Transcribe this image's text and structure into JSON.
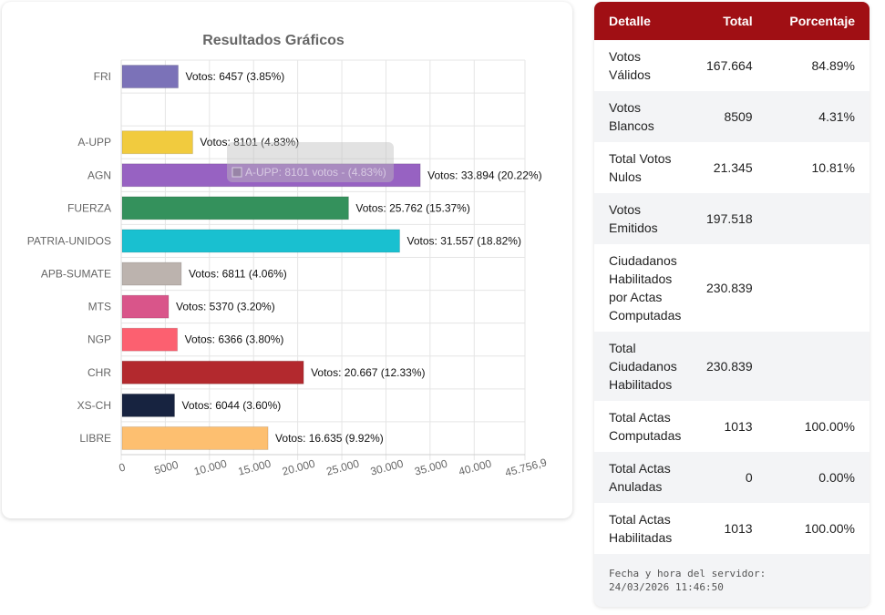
{
  "chart_data": {
    "type": "bar",
    "orientation": "horizontal",
    "title": "Resultados Gráficos",
    "xlabel": "",
    "ylabel": "",
    "xlim": [
      0,
      45756.9
    ],
    "x_ticks": [
      0,
      5000,
      10000,
      15000,
      20000,
      25000,
      30000,
      35000,
      40000,
      45756.9
    ],
    "x_tick_labels": [
      "0",
      "5000",
      "10.000",
      "15.000",
      "20.000",
      "25.000",
      "30.000",
      "35.000",
      "40.000",
      "45.756,9"
    ],
    "grid": true,
    "legend": "none",
    "categories": [
      "FRI",
      "",
      "A-UPP",
      "AGN",
      "FUERZA",
      "PATRIA-UNIDOS",
      "APB-SUMATE",
      "MTS",
      "NGP",
      "CHR",
      "XS-CH",
      "LIBRE"
    ],
    "values": [
      6457,
      null,
      8101,
      33894,
      25762,
      31557,
      6811,
      5370,
      6366,
      20667,
      6044,
      16635
    ],
    "data_labels": [
      "Votos: 6457 (3.85%)",
      "",
      "Votos: 8101 (4.83%)",
      "Votos: 33.894 (20.22%)",
      "Votos: 25.762 (15.37%)",
      "Votos: 31.557 (18.82%)",
      "Votos: 6811 (4.06%)",
      "Votos: 5370 (3.20%)",
      "Votos: 6366 (3.80%)",
      "Votos: 20.667 (12.33%)",
      "Votos: 6044 (3.60%)",
      "Votos: 16.635 (9.92%)"
    ],
    "colors": [
      "#7b72b8",
      "#ffffff",
      "#f1cb3e",
      "#9762c2",
      "#34915c",
      "#19c0d0",
      "#bcb3ae",
      "#d9558a",
      "#fc6070",
      "#b3292e",
      "#172340",
      "#fdbf70"
    ],
    "tooltip": {
      "text": "A-UPP: 8101 votos - (4.83%)",
      "color": "#f1cb3e"
    }
  },
  "table": {
    "headers": [
      "Detalle",
      "Total",
      "Porcentaje"
    ],
    "rows": [
      {
        "detalle": [
          "Votos",
          "Válidos"
        ],
        "total": "167.664",
        "porcentaje": "84.89%"
      },
      {
        "detalle": [
          "Votos",
          "Blancos"
        ],
        "total": "8509",
        "porcentaje": "4.31%"
      },
      {
        "detalle": [
          "Total Votos",
          "Nulos"
        ],
        "total": "21.345",
        "porcentaje": "10.81%"
      },
      {
        "detalle": [
          "Votos",
          "Emitidos"
        ],
        "total": "197.518",
        "porcentaje": ""
      },
      {
        "detalle": [
          "Ciudadanos",
          "Habilitados",
          "por Actas",
          "Computadas"
        ],
        "total": "230.839",
        "porcentaje": ""
      },
      {
        "detalle": [
          "Total",
          "Ciudadanos",
          "Habilitados"
        ],
        "total": "230.839",
        "porcentaje": ""
      },
      {
        "detalle": [
          "Total Actas",
          "Computadas"
        ],
        "total": "1013",
        "porcentaje": "100.00%"
      },
      {
        "detalle": [
          "Total Actas",
          "Anuladas"
        ],
        "total": "0",
        "porcentaje": "0.00%"
      },
      {
        "detalle": [
          "Total Actas",
          "Habilitadas"
        ],
        "total": "1013",
        "porcentaje": "100.00%"
      }
    ]
  },
  "server_time": {
    "label": "Fecha y hora del servidor:",
    "value": "24/03/2026 11:46:50"
  }
}
